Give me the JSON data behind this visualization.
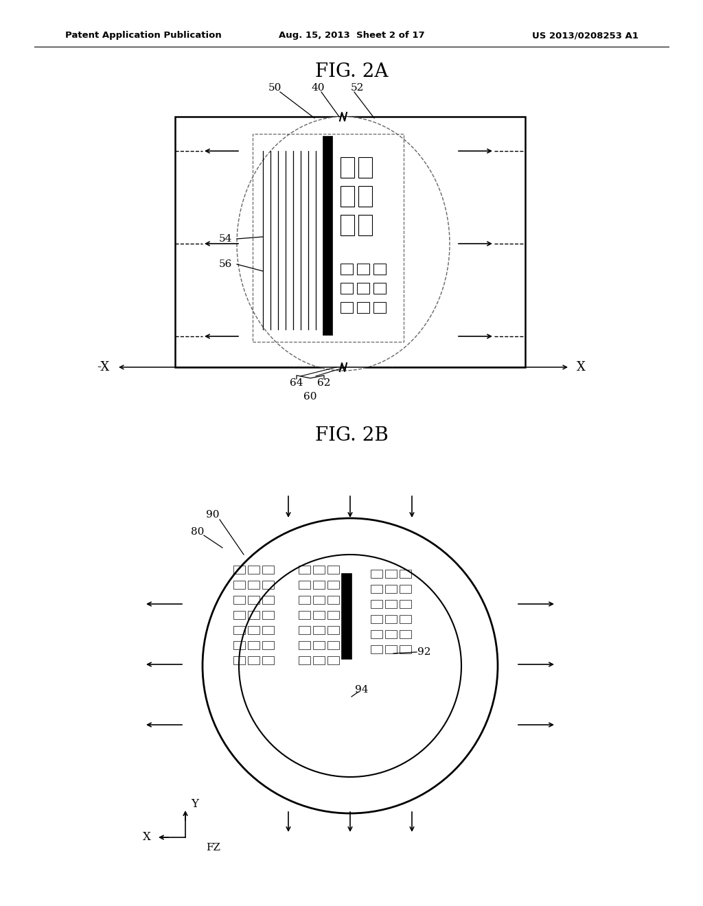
{
  "bg_color": "#ffffff",
  "header_left": "Patent Application Publication",
  "header_center": "Aug. 15, 2013  Sheet 2 of 17",
  "header_right": "US 2013/0208253 A1",
  "fig2a_title": "FIG. 2A",
  "fig2b_title": "FIG. 2B",
  "line_color": "#000000",
  "gray_color": "#888888"
}
